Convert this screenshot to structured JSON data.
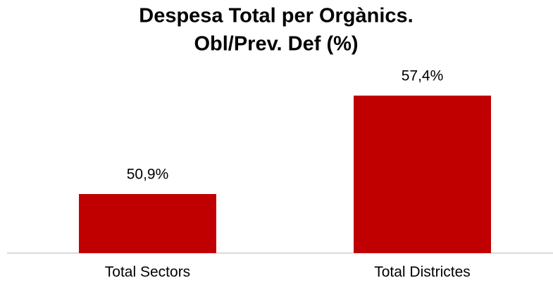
{
  "chart_data": {
    "type": "bar",
    "title": [
      "Despesa Total per Orgànics.",
      "Obl/Prev. Def (%)"
    ],
    "categories": [
      "Total Sectors",
      "Total Districtes"
    ],
    "values": [
      50.9,
      57.4
    ],
    "value_labels": [
      "50,9%",
      "57,4%"
    ],
    "color": "#c00000",
    "ylim": [
      47,
      60
    ]
  }
}
